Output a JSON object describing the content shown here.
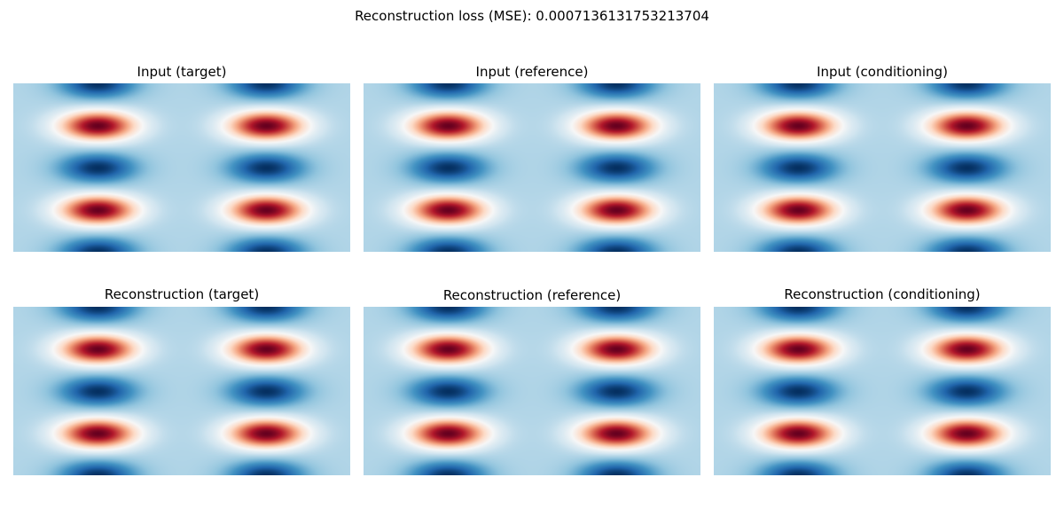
{
  "figure": {
    "suptitle": "Reconstruction loss (MSE): 0.0007136131753213704"
  },
  "chart_data": [
    {
      "type": "heatmap",
      "title": "Input (target)",
      "colormap": "RdBu_r",
      "axes_visible": false,
      "blob_columns": [
        0.25,
        0.75
      ],
      "positive_rows": [
        0.25,
        0.75
      ],
      "negative_rows": [
        0.0,
        0.5,
        1.0
      ],
      "background_level": -0.3
    },
    {
      "type": "heatmap",
      "title": "Input (reference)",
      "colormap": "RdBu_r",
      "axes_visible": false,
      "blob_columns": [
        0.25,
        0.75
      ],
      "positive_rows": [
        0.25,
        0.75
      ],
      "negative_rows": [
        0.0,
        0.5,
        1.0
      ],
      "background_level": -0.3
    },
    {
      "type": "heatmap",
      "title": "Input (conditioning)",
      "colormap": "RdBu_r",
      "axes_visible": false,
      "blob_columns": [
        0.25,
        0.75
      ],
      "positive_rows": [
        0.25,
        0.75
      ],
      "negative_rows": [
        0.0,
        0.5,
        1.0
      ],
      "background_level": -0.3
    },
    {
      "type": "heatmap",
      "title": "Reconstruction (target)",
      "colormap": "RdBu_r",
      "axes_visible": false,
      "blob_columns": [
        0.25,
        0.75
      ],
      "positive_rows": [
        0.25,
        0.75
      ],
      "negative_rows": [
        0.0,
        0.5,
        1.0
      ],
      "background_level": -0.3
    },
    {
      "type": "heatmap",
      "title": "Reconstruction (reference)",
      "colormap": "RdBu_r",
      "axes_visible": false,
      "blob_columns": [
        0.25,
        0.75
      ],
      "positive_rows": [
        0.25,
        0.75
      ],
      "negative_rows": [
        0.0,
        0.5,
        1.0
      ],
      "background_level": -0.3
    },
    {
      "type": "heatmap",
      "title": "Reconstruction (conditioning)",
      "colormap": "RdBu_r",
      "axes_visible": false,
      "blob_columns": [
        0.25,
        0.75
      ],
      "positive_rows": [
        0.25,
        0.75
      ],
      "negative_rows": [
        0.0,
        0.5,
        1.0
      ],
      "background_level": -0.3
    }
  ]
}
